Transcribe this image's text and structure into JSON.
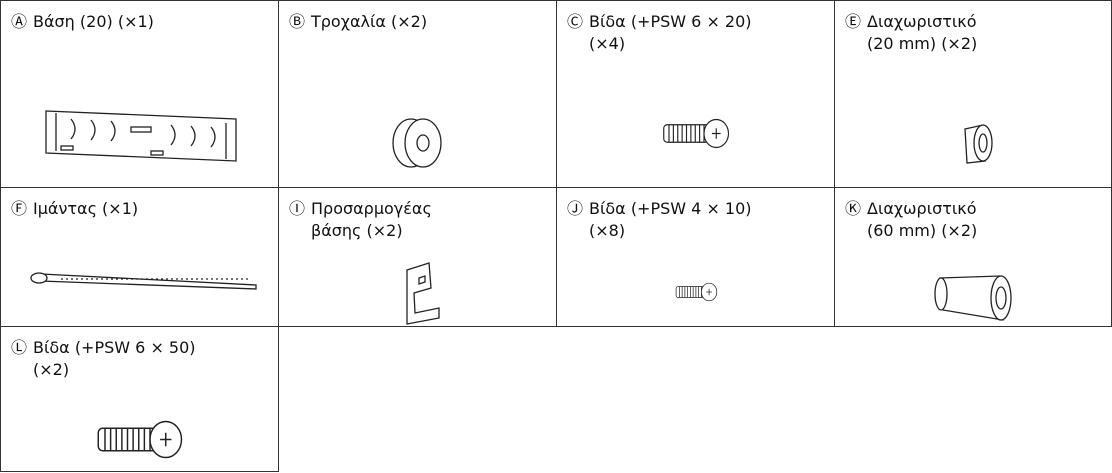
{
  "items": [
    {
      "letter": "Ⓐ",
      "lines": [
        "Βάση (20) (×1)"
      ]
    },
    {
      "letter": "Ⓑ",
      "lines": [
        "Τροχαλία (×2)"
      ]
    },
    {
      "letter": "Ⓒ",
      "lines": [
        "Βίδα (+PSW 6 × 20)",
        "(×4)"
      ]
    },
    {
      "letter": "Ⓔ",
      "lines": [
        "Διαχωριστικό",
        "(20 mm) (×2)"
      ]
    },
    {
      "letter": "Ⓕ",
      "lines": [
        "Ιμάντας (×1)"
      ]
    },
    {
      "letter": "Ⓘ",
      "lines": [
        "Προσαρμογέας",
        "βάσης (×2)"
      ]
    },
    {
      "letter": "Ⓙ",
      "lines": [
        "Βίδα (+PSW 4 × 10)",
        "(×8)"
      ]
    },
    {
      "letter": "Ⓚ",
      "lines": [
        "Διαχωριστικό",
        "(60 mm) (×2)"
      ]
    },
    {
      "letter": "Ⓛ",
      "lines": [
        "Βίδα (+PSW 6 × 50)",
        "(×2)"
      ]
    }
  ]
}
